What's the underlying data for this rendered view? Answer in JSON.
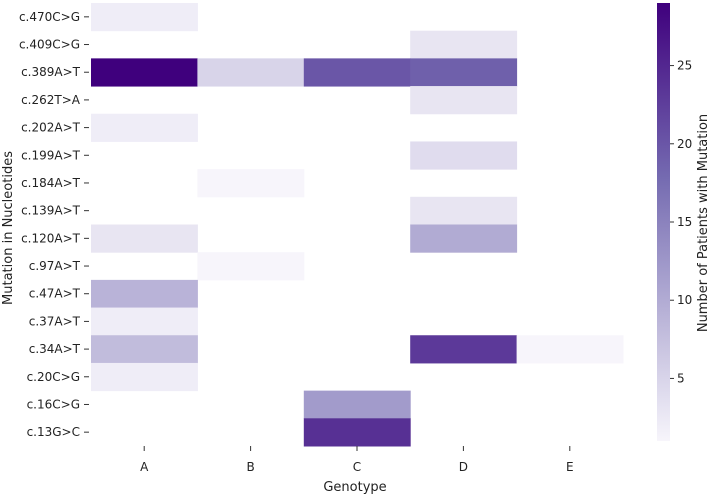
{
  "chart_data": {
    "type": "heatmap",
    "title": "",
    "xlabel": "Genotype",
    "ylabel": "Mutation in Nucleotides",
    "x_categories": [
      "A",
      "B",
      "C",
      "D",
      "E"
    ],
    "y_categories": [
      "c.470C>G",
      "c.409C>G",
      "c.389A>T",
      "c.262T>A",
      "c.202A>T",
      "c.199A>T",
      "c.184A>T",
      "c.139A>T",
      "c.120A>T",
      "c.97A>T",
      "c.47A>T",
      "c.37A>T",
      "c.34A>T",
      "c.20C>G",
      "c.16C>G",
      "c.13G>C"
    ],
    "values": [
      [
        2,
        null,
        null,
        null,
        null
      ],
      [
        null,
        null,
        null,
        3,
        null
      ],
      [
        29,
        5,
        20,
        19,
        null
      ],
      [
        null,
        null,
        null,
        3,
        null
      ],
      [
        2,
        null,
        null,
        null,
        null
      ],
      [
        null,
        null,
        null,
        4,
        null
      ],
      [
        null,
        1,
        null,
        null,
        null
      ],
      [
        null,
        null,
        null,
        3,
        null
      ],
      [
        3,
        null,
        null,
        10,
        null
      ],
      [
        null,
        1,
        null,
        null,
        null
      ],
      [
        9,
        null,
        null,
        null,
        null
      ],
      [
        2,
        null,
        null,
        null,
        null
      ],
      [
        8,
        null,
        null,
        23,
        1
      ],
      [
        2,
        null,
        null,
        null,
        null
      ],
      [
        null,
        null,
        12,
        null,
        null
      ],
      [
        null,
        null,
        24,
        null,
        null
      ]
    ],
    "colorbar": {
      "label": "Number of Patients with Mutation",
      "min": 1,
      "max": 29,
      "ticks": [
        "5",
        "10",
        "15",
        "20",
        "25"
      ],
      "colormap": "Purples",
      "low_color": "#f7f5fb",
      "high_color": "#3f007d"
    },
    "grid": false,
    "legend": "colorbar-right"
  }
}
